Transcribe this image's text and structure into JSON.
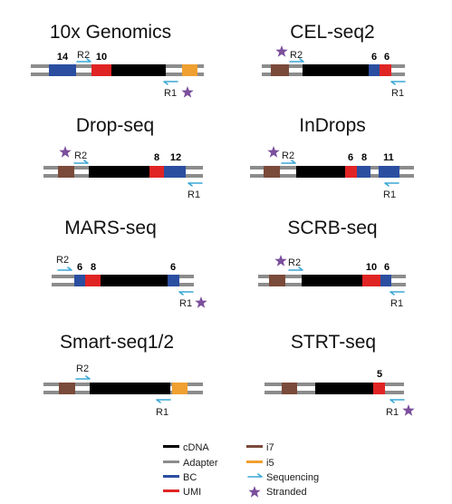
{
  "colors": {
    "adapter": "#8c8c8c",
    "cdna": "#000000",
    "bc": "#2b4ea0",
    "umi": "#e02424",
    "i7": "#7a4a3a",
    "i5": "#f0a030",
    "sequencing": "#3aa7d6",
    "stranded": "#7b4f9c"
  },
  "protocols": [
    {
      "title": "10x Genomics",
      "r2": "R2",
      "r1": "R1",
      "labels": [
        "14",
        "10"
      ]
    },
    {
      "title": "CEL-seq2",
      "r2": "R2",
      "r1": "R1",
      "labels": [
        "6",
        "6"
      ]
    },
    {
      "title": "Drop-seq",
      "r2": "R2",
      "r1": "R1",
      "labels": [
        "8",
        "12"
      ]
    },
    {
      "title": "InDrops",
      "r2": "R2",
      "r1": "R1",
      "labels": [
        "6",
        "8",
        "11"
      ]
    },
    {
      "title": "MARS-seq",
      "r2": "R2",
      "r1": "R1",
      "labels": [
        "6",
        "8",
        "6"
      ]
    },
    {
      "title": "SCRB-seq",
      "r2": "R2",
      "r1": "R1",
      "labels": [
        "10",
        "6"
      ]
    },
    {
      "title": "Smart-seq1/2",
      "r2": "R2",
      "r1": "R1",
      "labels": []
    },
    {
      "title": "STRT-seq",
      "r2": "",
      "r1": "R1",
      "labels": [
        "5"
      ]
    }
  ],
  "legend": {
    "cdna": "cDNA",
    "adapter": "Adapter",
    "bc": "BC",
    "umi": "UMI",
    "i7": "i7",
    "i5": "i5",
    "sequencing": "Sequencing",
    "stranded": "Stranded"
  }
}
